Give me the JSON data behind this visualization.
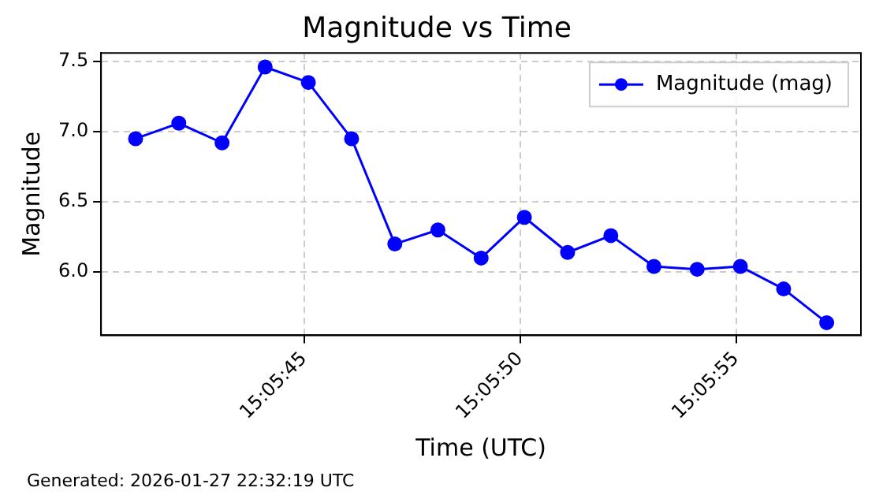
{
  "chart_data": {
    "type": "line",
    "title": "Magnitude vs Time",
    "xlabel": "Time (UTC)",
    "ylabel": "Magnitude",
    "x": [
      15.09475,
      15.095028,
      15.095306,
      15.095583,
      15.095861,
      15.096139,
      15.096417,
      15.096694,
      15.096972,
      15.09725,
      15.097528,
      15.097806,
      15.098083,
      15.098361,
      15.098639,
      15.098917,
      15.099194
    ],
    "series": [
      {
        "name": "Magnitude (mag)",
        "color": "#0000ff",
        "values": [
          6.95,
          7.06,
          6.92,
          7.46,
          7.35,
          6.95,
          6.2,
          6.3,
          6.1,
          6.39,
          6.14,
          6.26,
          6.04,
          6.02,
          6.04,
          5.88,
          5.64
        ]
      }
    ],
    "xlim": [
      15.094528,
      15.099414
    ],
    "xticks": [
      {
        "value": 15.095833,
        "label": "15:05:45"
      },
      {
        "value": 15.097222,
        "label": "15:05:50"
      },
      {
        "value": 15.098611,
        "label": "15:05:55"
      }
    ],
    "ylim": [
      5.55,
      7.56
    ],
    "yticks": [
      {
        "value": 6,
        "label": "6.0"
      },
      6.5,
      {
        "value": 7,
        "label": "7.0"
      },
      7.5
    ],
    "grid": true,
    "legend": "top right",
    "marker": "circle",
    "line_style": "solid",
    "annotations": [
      "Generated: 2026-01-27 22:32:19 UTC"
    ]
  }
}
